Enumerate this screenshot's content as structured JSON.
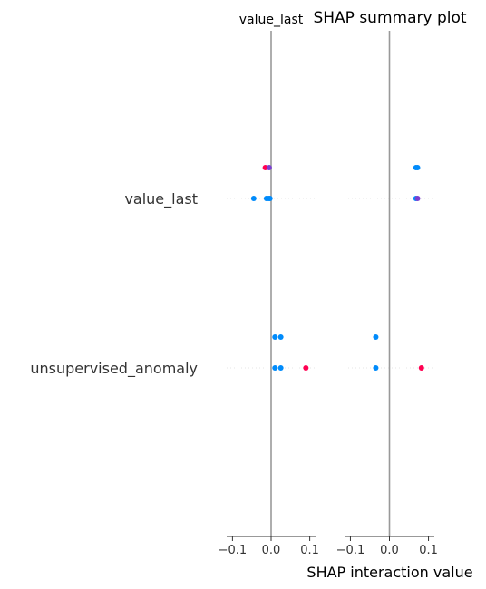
{
  "chart_data": {
    "type": "scatter",
    "title": "SHAP summary plot",
    "xlabel": "SHAP interaction value",
    "features": [
      "value_last",
      "unsupervised_anomaly"
    ],
    "xlim": [
      -0.115,
      0.115
    ],
    "xticks": [
      {
        "value": -0.1,
        "label": "−0.1"
      },
      {
        "value": 0.0,
        "label": "0.0"
      },
      {
        "value": 0.1,
        "label": "0.1"
      }
    ],
    "colors": {
      "high": "#ff0052",
      "low": "#008bfb",
      "mid": "#7b3fd0",
      "zero_line": "#999999",
      "grid": "#dddddd",
      "axis": "#333333"
    },
    "panels": [
      {
        "title": "value_last",
        "points": [
          {
            "feature": "value_last",
            "x": -0.015,
            "offset": -1,
            "color": "high"
          },
          {
            "feature": "value_last",
            "x": -0.005,
            "offset": -1,
            "color": "mid"
          },
          {
            "feature": "value_last",
            "x": -0.045,
            "offset": 0,
            "color": "low"
          },
          {
            "feature": "value_last",
            "x": -0.012,
            "offset": 0,
            "color": "low"
          },
          {
            "feature": "value_last",
            "x": -0.007,
            "offset": 0,
            "color": "low"
          },
          {
            "feature": "value_last",
            "x": -0.003,
            "offset": 0,
            "color": "low"
          },
          {
            "feature": "unsupervised_anomaly",
            "x": 0.01,
            "offset": -1,
            "color": "low"
          },
          {
            "feature": "unsupervised_anomaly",
            "x": 0.025,
            "offset": -1,
            "color": "low"
          },
          {
            "feature": "unsupervised_anomaly",
            "x": 0.01,
            "offset": 0,
            "color": "low"
          },
          {
            "feature": "unsupervised_anomaly",
            "x": 0.025,
            "offset": 0,
            "color": "low"
          },
          {
            "feature": "unsupervised_anomaly",
            "x": 0.09,
            "offset": 0,
            "color": "high"
          }
        ]
      },
      {
        "title": "",
        "points": [
          {
            "feature": "value_last",
            "x": 0.068,
            "offset": -1,
            "color": "low"
          },
          {
            "feature": "value_last",
            "x": 0.072,
            "offset": -1,
            "color": "low"
          },
          {
            "feature": "value_last",
            "x": 0.068,
            "offset": 0,
            "color": "low"
          },
          {
            "feature": "value_last",
            "x": 0.072,
            "offset": 0,
            "color": "mid"
          },
          {
            "feature": "unsupervised_anomaly",
            "x": -0.035,
            "offset": -1,
            "color": "low"
          },
          {
            "feature": "unsupervised_anomaly",
            "x": -0.035,
            "offset": 0,
            "color": "low"
          },
          {
            "feature": "unsupervised_anomaly",
            "x": 0.082,
            "offset": 0,
            "color": "high"
          }
        ]
      }
    ]
  }
}
